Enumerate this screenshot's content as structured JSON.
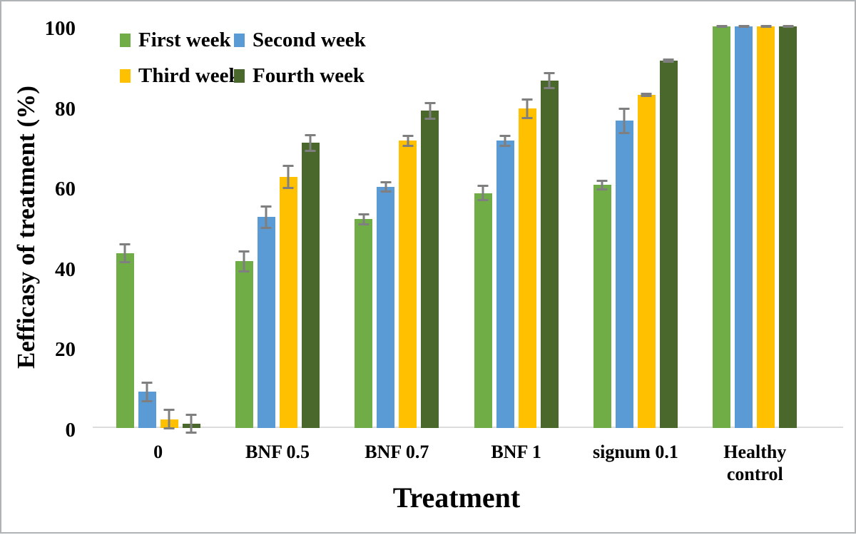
{
  "chart_data": {
    "type": "bar",
    "title": "",
    "xlabel": "Treatment",
    "ylabel": "Eefficasy of treatment (%)",
    "ylim": [
      0,
      100
    ],
    "yticks": [
      0,
      20,
      40,
      60,
      80,
      100
    ],
    "grid": false,
    "legend_position": "top-left-inside",
    "error_bars": true,
    "error_bar_color": "#7f7f7f",
    "axis_line_color": "#dcdcdc",
    "categories": [
      "0",
      "BNF 0.5",
      "BNF 0.7",
      "BNF 1",
      "signum 0.1",
      "Healthy control"
    ],
    "series": [
      {
        "name": "First week",
        "color": "#70AD47",
        "values": [
          43.5,
          41.5,
          52,
          58.5,
          60.5,
          100
        ],
        "errors": [
          2.5,
          2.8,
          1.5,
          2,
          1.4,
          0.3
        ]
      },
      {
        "name": "Second week",
        "color": "#5B9BD5",
        "values": [
          9,
          52.5,
          60,
          71.5,
          76.5,
          100
        ],
        "errors": [
          2.6,
          3,
          1.4,
          1.5,
          3.3,
          0.3
        ]
      },
      {
        "name": "Third week",
        "color": "#FFC000",
        "values": [
          2.2,
          62.5,
          71.5,
          79.5,
          83,
          100
        ],
        "errors": [
          2.6,
          3,
          1.5,
          2.5,
          0.5,
          0.3
        ]
      },
      {
        "name": "Fourth week",
        "color": "#4A682C",
        "values": [
          1,
          71,
          79,
          86.5,
          91.5,
          100
        ],
        "errors": [
          2.5,
          2.2,
          2.2,
          2.2,
          0.5,
          0.3
        ]
      }
    ]
  }
}
